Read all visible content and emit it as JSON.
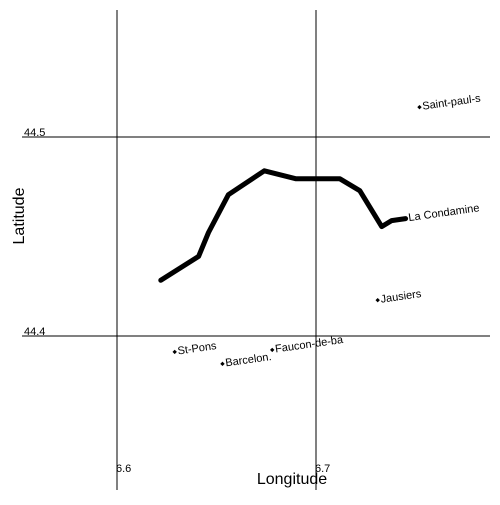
{
  "map": {
    "xlabel": "Longitude",
    "ylabel": "Latitude",
    "x_ticks": [
      "6.6",
      "6.7"
    ],
    "y_ticks": [
      "44.5",
      "44.4"
    ],
    "line_color": "#000000",
    "route": [
      [
        6.622,
        44.428
      ],
      [
        6.641,
        44.44
      ],
      [
        6.646,
        44.452
      ],
      [
        6.656,
        44.471
      ],
      [
        6.674,
        44.483
      ],
      [
        6.69,
        44.479
      ],
      [
        6.712,
        44.479
      ],
      [
        6.722,
        44.473
      ],
      [
        6.733,
        44.455
      ],
      [
        6.738,
        44.458
      ],
      [
        6.745,
        44.459
      ]
    ],
    "places": [
      {
        "name": "Saint-paul-s",
        "lon": 6.752,
        "lat": 44.515
      },
      {
        "name": "La Condamine",
        "lon": 6.745,
        "lat": 44.459
      },
      {
        "name": "Jausiers",
        "lon": 6.731,
        "lat": 44.418
      },
      {
        "name": "St-Pons",
        "lon": 6.629,
        "lat": 44.392
      },
      {
        "name": "Barcelon.",
        "lon": 6.653,
        "lat": 44.386
      },
      {
        "name": "Faucon-de-ba",
        "lon": 6.678,
        "lat": 44.393
      }
    ]
  }
}
